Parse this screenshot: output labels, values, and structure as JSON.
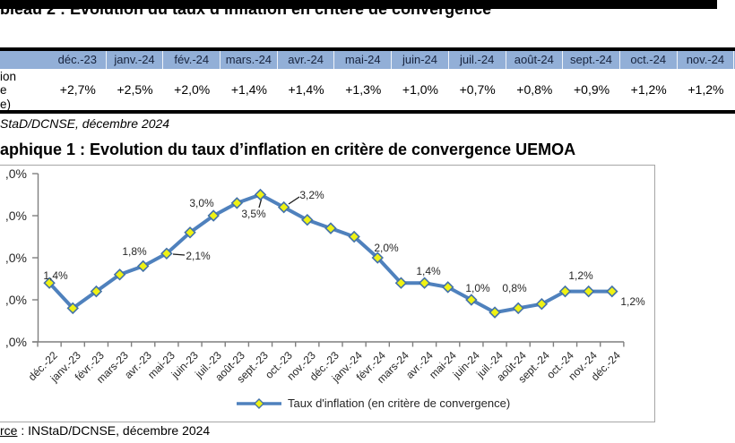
{
  "table_section": {
    "title": "bleau 2 : Evolution du taux d’inflation en critère de convergence",
    "source": "StaD/DCNSE, décembre 2024",
    "table": {
      "header_bg": "#92AFD7",
      "row_label_fragments": [
        "ion",
        "e",
        "e)"
      ],
      "columns": [
        "déc.-23",
        "janv.-24",
        "fév.-24",
        "mars.-24",
        "avr.-24",
        "mai-24",
        "juin-24",
        "juil.-24",
        "août-24",
        "sept.-24",
        "oct.-24",
        "nov.-24"
      ],
      "values": [
        "+2,7%",
        "+2,5%",
        "+2,0%",
        "+1,4%",
        "+1,4%",
        "+1,3%",
        "+1,0%",
        "+0,7%",
        "+0,8%",
        "+0,9%",
        "+1,2%",
        "+1,2%"
      ]
    }
  },
  "chart_section": {
    "title": "aphique 1 : Evolution du taux d’inflation en critère de convergence UEMOA",
    "source_underlined": "rce",
    "source_rest": " : INStaD/DCNSE, décembre 2024"
  },
  "chart_data": {
    "type": "line",
    "title": "aphique 1 : Evolution du taux d’inflation en critère de convergence UEMOA",
    "categories": [
      "déc.-22",
      "janv.-23",
      "févr.-23",
      "mars-23",
      "avr.-23",
      "mai-23",
      "juin-23",
      "juil.-23",
      "août-23",
      "sept.-23",
      "oct.-23",
      "nov.-23",
      "déc.-23",
      "janv.-24",
      "févr.-24",
      "mars-24",
      "avr.-24",
      "mai-24",
      "juin-24",
      "juil.-24",
      "août-24",
      "sept.-24",
      "oct.-24",
      "nov.-24",
      "déc.-24"
    ],
    "series": [
      {
        "name": "Taux d'inflation (en critère de convergence)",
        "color": "#4F81BD",
        "marker": "diamond",
        "marker_fill": "#EFF214",
        "marker_stroke": "#4472A8",
        "values": [
          1.4,
          0.8,
          1.2,
          1.6,
          1.8,
          2.1,
          2.6,
          3.0,
          3.3,
          3.5,
          3.2,
          2.9,
          2.7,
          2.5,
          2.0,
          1.4,
          1.4,
          1.3,
          1.0,
          0.7,
          0.8,
          0.9,
          1.2,
          1.2,
          1.2
        ]
      }
    ],
    "ylim": [
      0,
      4
    ],
    "y_tick_step": 1,
    "y_tick_labels_visible": [
      ",0%",
      ",0%",
      ",0%",
      ",0%",
      ",0%"
    ],
    "grid": false,
    "legend_position": "bottom",
    "axis_color": "#7F7F7F",
    "label_color": "#262626",
    "data_labels": [
      {
        "i": 0,
        "text": "1,4%",
        "x": 62,
        "y": 123
      },
      {
        "i": 4,
        "text": "1,8%",
        "x": 150,
        "y": 96
      },
      {
        "i": 5,
        "text": "2,1%",
        "x": 221,
        "y": 101,
        "leader": [
          [
            206,
            100
          ],
          [
            193,
            99
          ]
        ]
      },
      {
        "i": 7,
        "text": "3,0%",
        "x": 225,
        "y": 42
      },
      {
        "i": 9,
        "text": "3,5%",
        "x": 283,
        "y": 54,
        "leader": [
          [
            289,
            47
          ],
          [
            292,
            36
          ]
        ]
      },
      {
        "i": 10,
        "text": "3,2%",
        "x": 348,
        "y": 33,
        "leader": [
          [
            334,
            35
          ],
          [
            322,
            43
          ]
        ]
      },
      {
        "i": 14,
        "text": "2,0%",
        "x": 431,
        "y": 92
      },
      {
        "i": 16,
        "text": "1,4%",
        "x": 478,
        "y": 118
      },
      {
        "i": 18,
        "text": "1,0%",
        "x": 533,
        "y": 137
      },
      {
        "i": 20,
        "text": "0,8%",
        "x": 574,
        "y": 137
      },
      {
        "i": 23,
        "text": "1,2%",
        "x": 648,
        "y": 123
      },
      {
        "i": 24,
        "text": "1,2%",
        "x": 706,
        "y": 152
      }
    ]
  }
}
